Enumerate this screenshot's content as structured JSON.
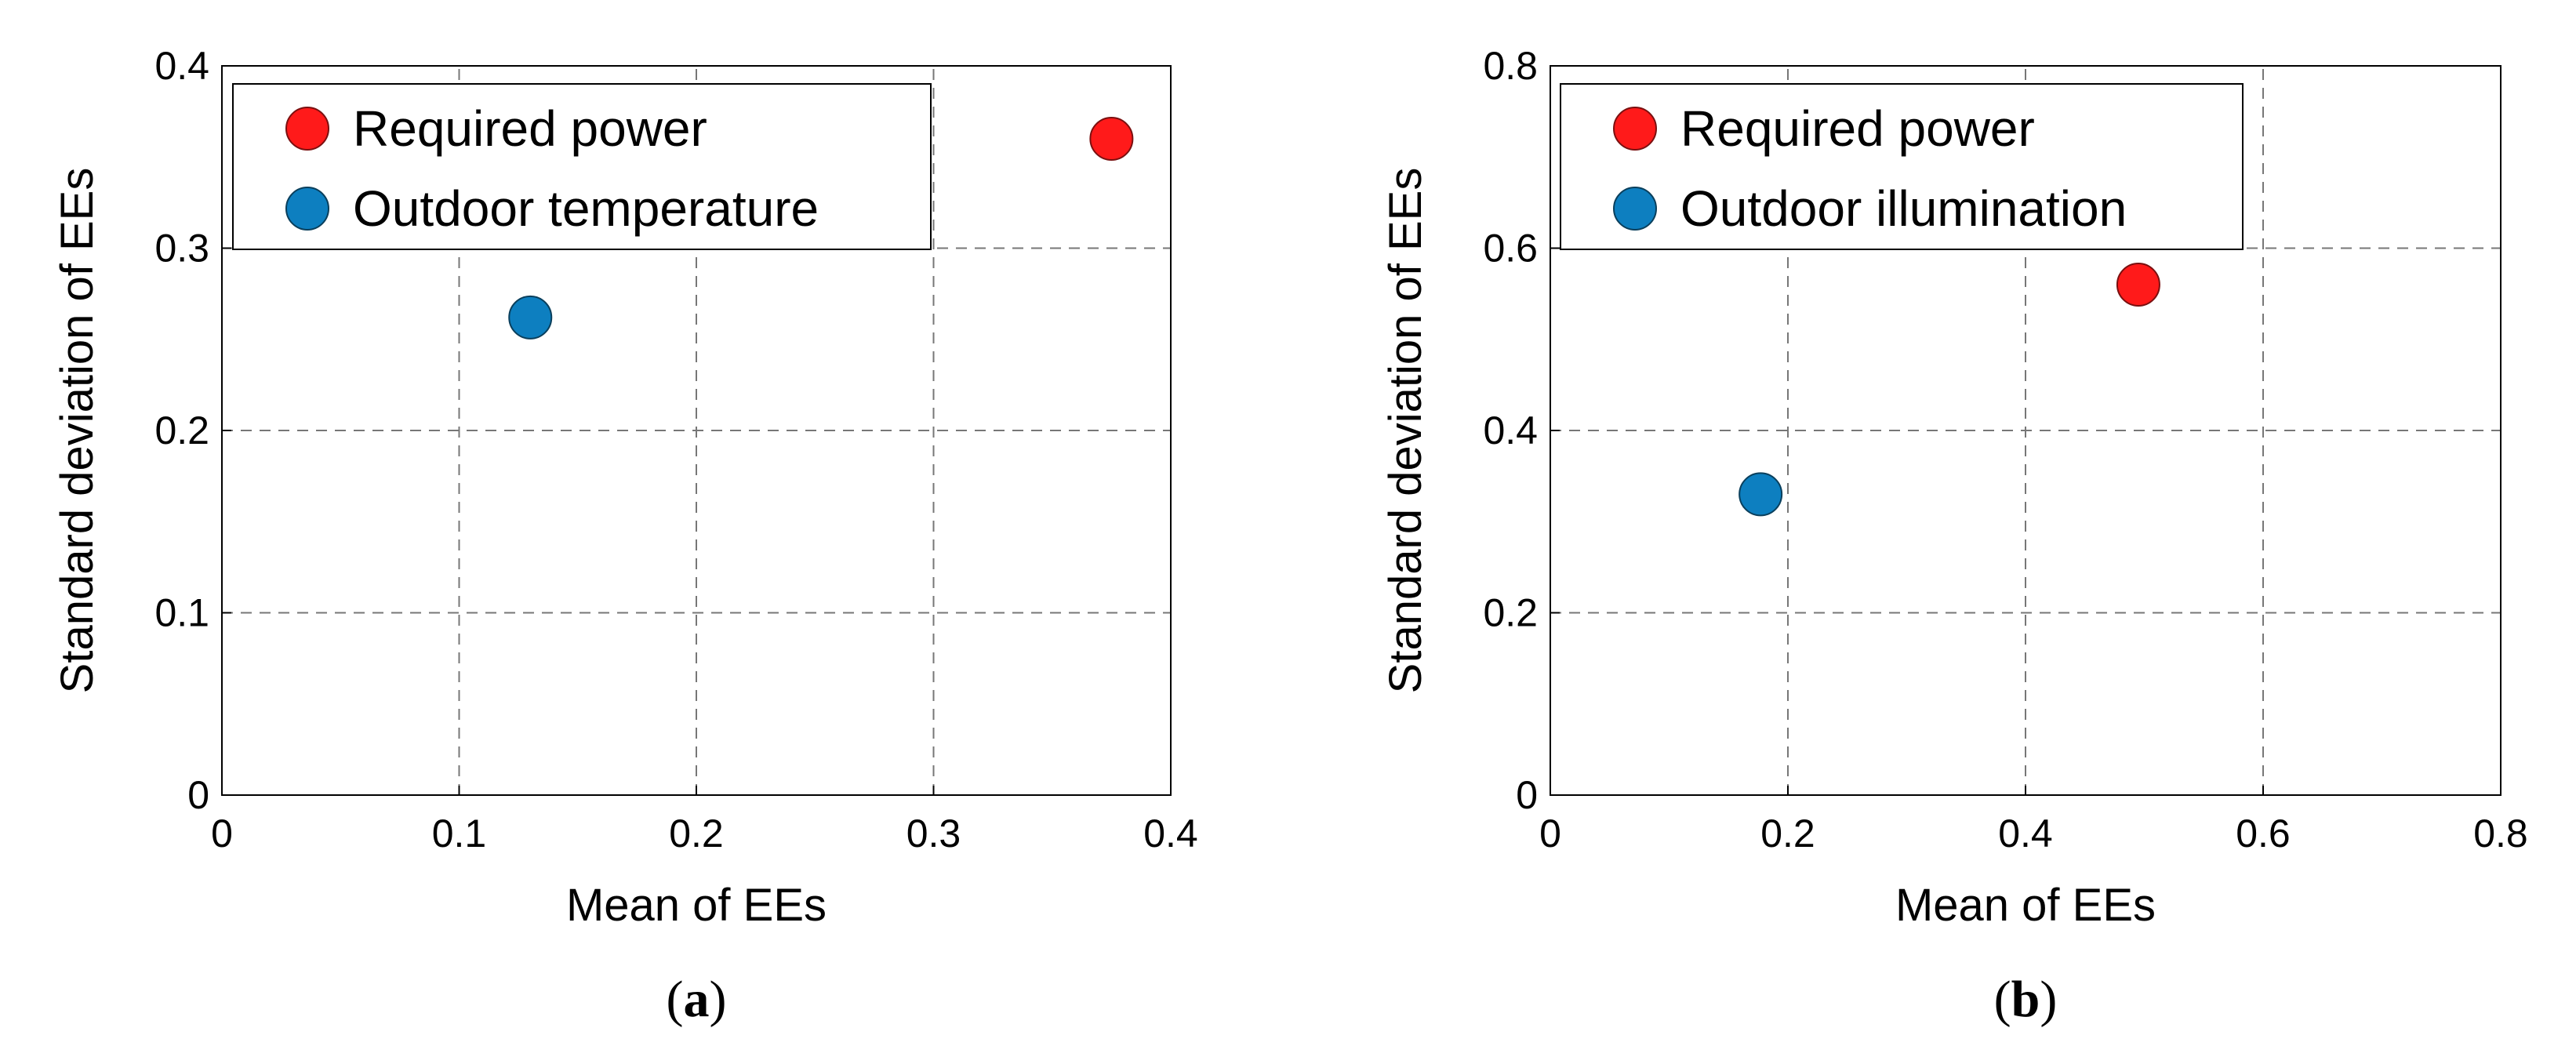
{
  "chart_data": [
    {
      "type": "scatter",
      "caption_letter": "a",
      "xlabel": "Mean of EEs",
      "ylabel": "Standard deviation of EEs",
      "xlim": [
        0,
        0.4
      ],
      "ylim": [
        0,
        0.4
      ],
      "xticks": [
        "0",
        "0.1",
        "0.2",
        "0.3",
        "0.4"
      ],
      "yticks": [
        "0",
        "0.1",
        "0.2",
        "0.3",
        "0.4"
      ],
      "grid": true,
      "legend_position": "top-left",
      "series": [
        {
          "name": "Required power",
          "color": "#ff1a1a",
          "x": [
            0.375
          ],
          "y": [
            0.36
          ]
        },
        {
          "name": "Outdoor temperature",
          "color": "#0d7fc0",
          "x": [
            0.13
          ],
          "y": [
            0.262
          ]
        }
      ]
    },
    {
      "type": "scatter",
      "caption_letter": "b",
      "xlabel": "Mean of EEs",
      "ylabel": "Standard deviation of EEs",
      "xlim": [
        0,
        0.8
      ],
      "ylim": [
        0,
        0.8
      ],
      "xticks": [
        "0",
        "0.2",
        "0.4",
        "0.6",
        "0.8"
      ],
      "yticks": [
        "0",
        "0.2",
        "0.4",
        "0.6",
        "0.8"
      ],
      "grid": true,
      "legend_position": "top-left",
      "series": [
        {
          "name": "Required power",
          "color": "#ff1a1a",
          "x": [
            0.495
          ],
          "y": [
            0.56
          ]
        },
        {
          "name": "Outdoor illumination",
          "color": "#0d7fc0",
          "x": [
            0.177
          ],
          "y": [
            0.33
          ]
        }
      ]
    }
  ]
}
